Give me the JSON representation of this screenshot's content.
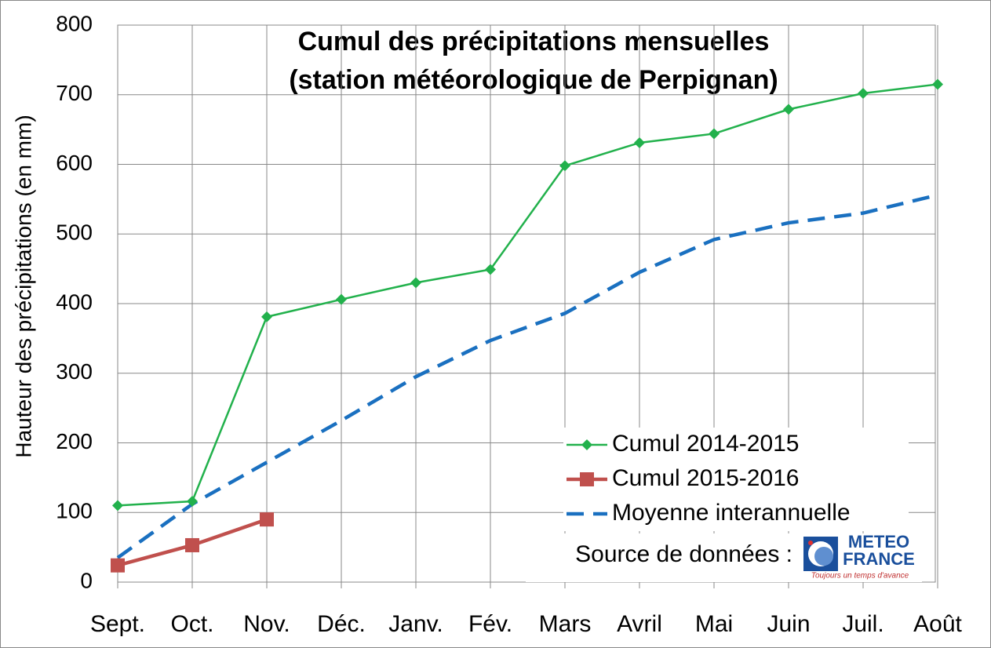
{
  "chart_data": {
    "type": "line",
    "title": "Cumul des précipitations mensuelles",
    "subtitle": "(station météorologique de Perpignan)",
    "y_label": "Hauteur des précipitations (en mm)",
    "categories": [
      "Sept.",
      "Oct.",
      "Nov.",
      "Déc.",
      "Janv.",
      "Fév.",
      "Mars",
      "Avril",
      "Mai",
      "Juin",
      "Juil.",
      "Août"
    ],
    "series": [
      {
        "name": "Cumul 2014-2015",
        "color": "#22b14c",
        "marker": "diamond",
        "dash": false,
        "values": [
          110,
          116,
          381,
          406,
          430,
          449,
          598,
          631,
          644,
          679,
          702,
          715
        ]
      },
      {
        "name": "Cumul 2015-2016",
        "color": "#c0504d",
        "marker": "square",
        "dash": false,
        "values": [
          24,
          53,
          90,
          null,
          null,
          null,
          null,
          null,
          null,
          null,
          null,
          null
        ]
      },
      {
        "name": "Moyenne interannuelle",
        "color": "#1a70c0",
        "marker": null,
        "dash": true,
        "values": [
          35,
          112,
          172,
          232,
          295,
          347,
          386,
          445,
          492,
          516,
          530,
          556
        ]
      }
    ],
    "ylim": [
      0,
      800
    ],
    "yticks": [
      0,
      100,
      200,
      300,
      400,
      500,
      600,
      700,
      800
    ],
    "grid": true,
    "legend": "lower right",
    "source": "Source de données :",
    "logo": {
      "line1": "METEO",
      "line2": "FRANCE",
      "tagline": "Toujours un temps d'avance"
    }
  }
}
